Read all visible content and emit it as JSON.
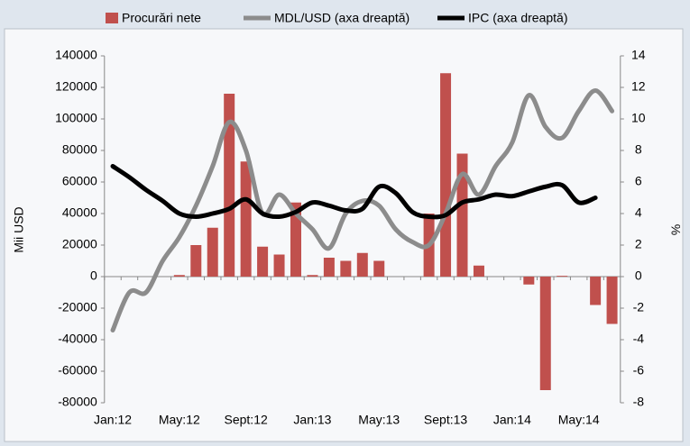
{
  "chart_data": {
    "type": "bar_line",
    "y_label": "Mii USD",
    "y2_label": "%",
    "categories": [
      "Jan:12",
      null,
      null,
      null,
      "May:12",
      null,
      null,
      null,
      "Sept:12",
      null,
      null,
      null,
      "Jan:13",
      null,
      null,
      null,
      "May:13",
      null,
      null,
      null,
      "Sept:13",
      null,
      null,
      null,
      "Jan:14",
      null,
      null,
      null,
      "May:14",
      null,
      null
    ],
    "series": [
      {
        "name": "Procurări nete",
        "color": "#c0504d",
        "kind": "bar",
        "axis": "y",
        "values": [
          null,
          null,
          null,
          null,
          1000,
          20000,
          31000,
          116000,
          73000,
          19000,
          14000,
          47000,
          1000,
          12000,
          10000,
          15000,
          10000,
          null,
          null,
          40000,
          129000,
          78000,
          7000,
          null,
          null,
          -5000,
          -72000,
          500,
          null,
          -18000,
          -30000
        ]
      },
      {
        "name": "MDL/USD (axa dreaptă)",
        "color": "#8c8c8c",
        "kind": "line",
        "axis": "y2",
        "values": [
          -3.4,
          -1,
          -1,
          1,
          2.5,
          4.5,
          7,
          9.8,
          8,
          4,
          5.2,
          4,
          3,
          1.8,
          4,
          4.8,
          4.5,
          3,
          2.2,
          2,
          4,
          6.5,
          5.2,
          7,
          8.5,
          11.5,
          9.5,
          8.8,
          10.5,
          11.8,
          10.5
        ]
      },
      {
        "name": "IPC (axa dreaptă)",
        "color": "#000000",
        "kind": "line",
        "axis": "y2",
        "values": [
          7,
          6.3,
          5.5,
          4.8,
          4,
          3.8,
          4,
          4.3,
          4.9,
          4,
          3.8,
          4.1,
          4.7,
          4.5,
          4.2,
          4.3,
          5.7,
          5.3,
          4.1,
          3.8,
          3.9,
          4.7,
          4.9,
          5.2,
          5.1,
          5.4,
          5.7,
          5.8,
          4.7,
          5,
          null
        ]
      }
    ],
    "ylim": [
      -80000,
      140000
    ],
    "yticks": [
      -80000,
      -60000,
      -40000,
      -20000,
      0,
      20000,
      40000,
      60000,
      80000,
      100000,
      120000,
      140000
    ],
    "y2lim": [
      -8,
      14
    ],
    "y2ticks": [
      -8,
      -6,
      -4,
      -2,
      0,
      2,
      4,
      6,
      8,
      10,
      12,
      14
    ],
    "grid": false
  }
}
